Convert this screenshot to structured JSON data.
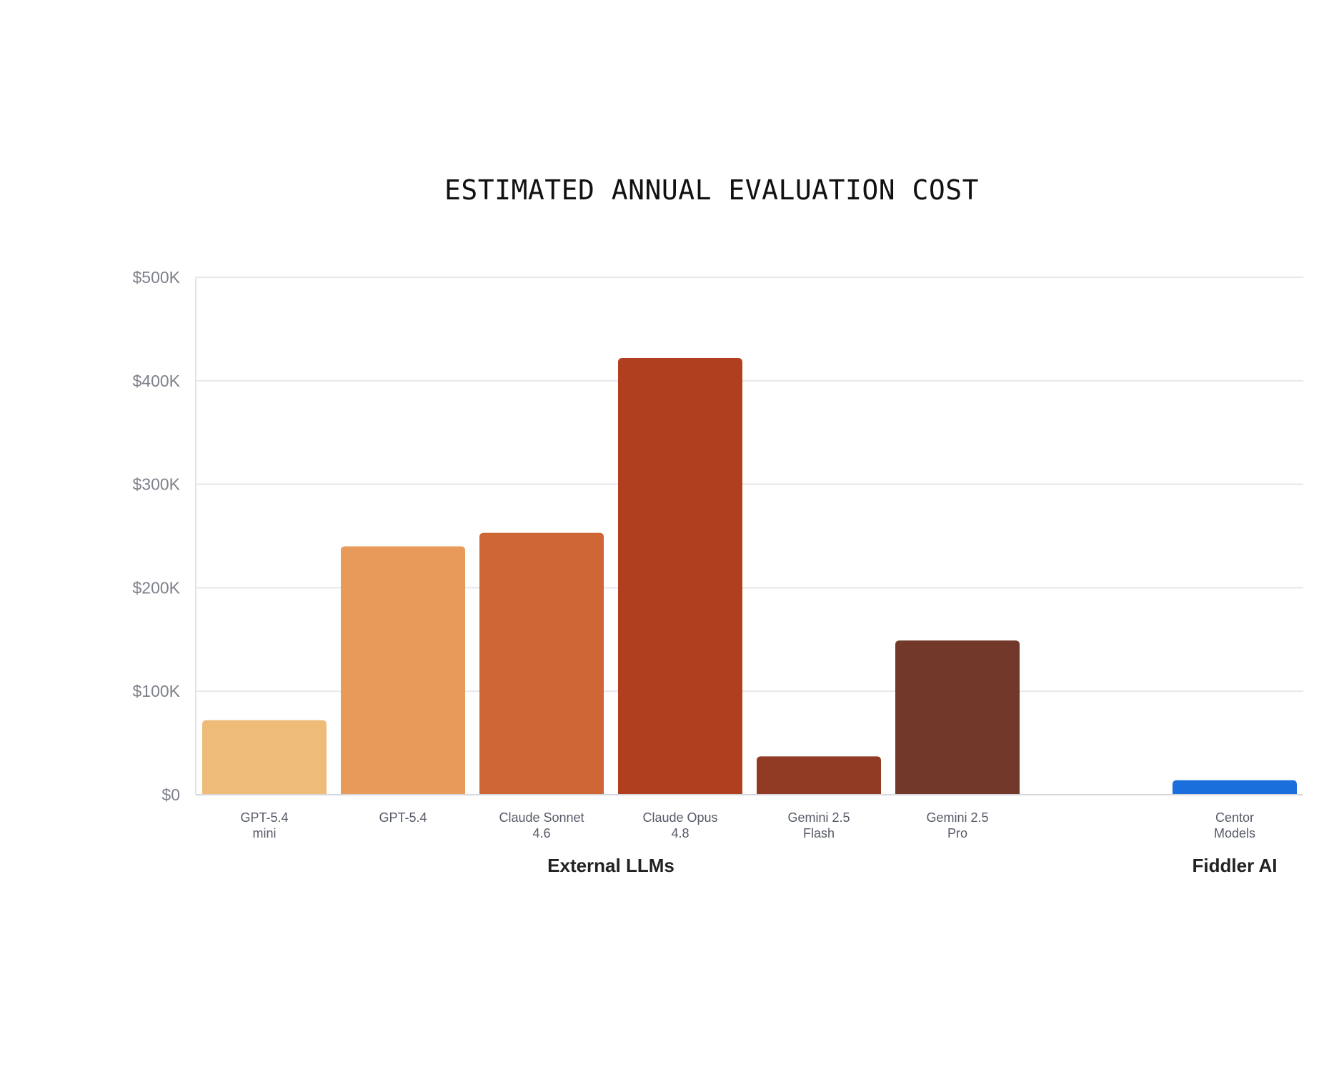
{
  "chart_data": {
    "type": "bar",
    "title": "ESTIMATED ANNUAL EVALUATION COST",
    "xlabel": "",
    "ylabel": "",
    "ylim": [
      0,
      500000
    ],
    "y_ticks": [
      {
        "value": 0,
        "label": "$0"
      },
      {
        "value": 100000,
        "label": "$100K"
      },
      {
        "value": 200000,
        "label": "$200K"
      },
      {
        "value": 300000,
        "label": "$300K"
      },
      {
        "value": 400000,
        "label": "$400K"
      },
      {
        "value": 500000,
        "label": "$500K"
      }
    ],
    "grid": true,
    "categories": [
      {
        "lines": [
          "GPT-5.4",
          "mini"
        ],
        "value": 72000,
        "color": "#EEBB79"
      },
      {
        "lines": [
          "GPT-5.4"
        ],
        "value": 240000,
        "color": "#E89A5B"
      },
      {
        "lines": [
          "Claude Sonnet",
          "4.6"
        ],
        "value": 253000,
        "color": "#CE6635"
      },
      {
        "lines": [
          "Claude Opus",
          "4.8"
        ],
        "value": 422000,
        "color": "#B03F20"
      },
      {
        "lines": [
          "Gemini 2.5",
          "Flash"
        ],
        "value": 37000,
        "color": "#913B25"
      },
      {
        "lines": [
          "Gemini 2.5",
          "Pro"
        ],
        "value": 149000,
        "color": "#723829"
      },
      {
        "lines": [
          "Centor",
          "Models"
        ],
        "value": 14000,
        "color": "#1A6FDC"
      }
    ],
    "groups": [
      {
        "label": "External LLMs",
        "from": 0,
        "to": 5
      },
      {
        "label": "Fiddler AI",
        "from": 6,
        "to": 6
      }
    ]
  }
}
